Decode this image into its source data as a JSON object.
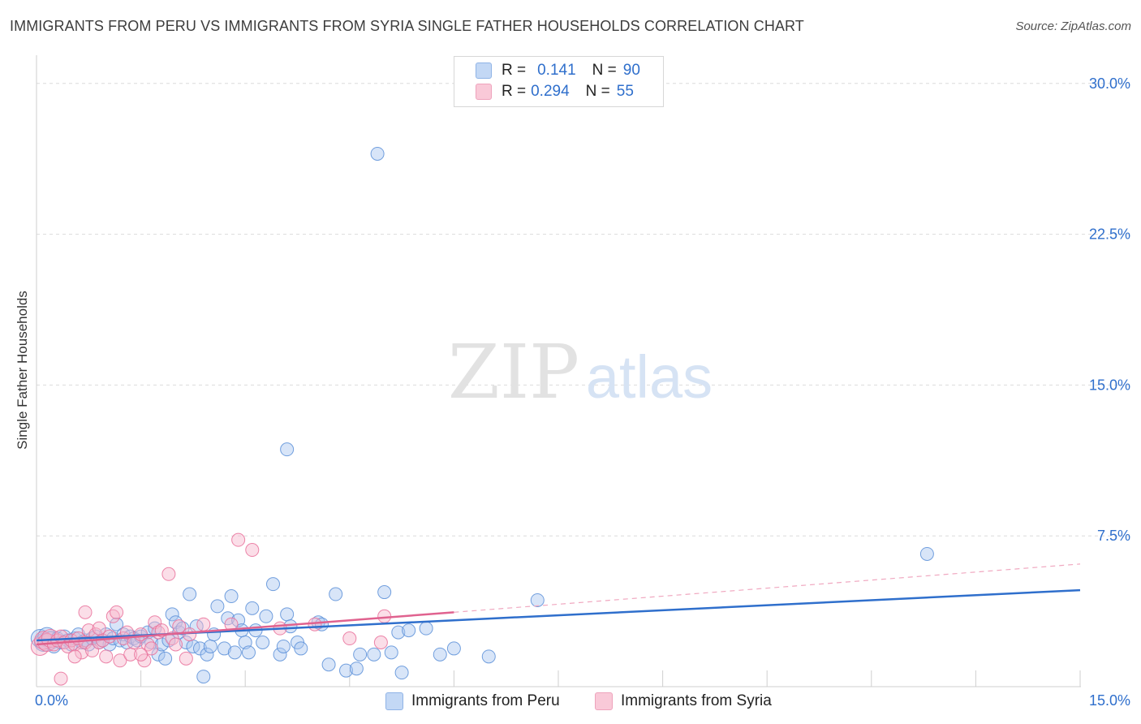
{
  "title": "IMMIGRANTS FROM PERU VS IMMIGRANTS FROM SYRIA SINGLE FATHER HOUSEHOLDS CORRELATION CHART",
  "source": "Source: ZipAtlas.com",
  "watermark": {
    "zip": "ZIP",
    "atlas": "atlas"
  },
  "legend": {
    "peru": {
      "r_label": "R =",
      "r_value": "0.141",
      "n_label": "N =",
      "n_value": "90",
      "name": "Immigrants from Peru"
    },
    "syria": {
      "r_label": "R =",
      "r_value": "0.294",
      "n_label": "N =",
      "n_value": "55",
      "name": "Immigrants from Syria"
    }
  },
  "colors": {
    "peru": "#5b8fd8",
    "peru_fill": "#a9c6ef",
    "syria": "#e9709a",
    "syria_fill": "#f6b6cb",
    "axis_label": "#2f6fcc",
    "grid": "#dcdcdc"
  },
  "chart_data": {
    "type": "scatter",
    "title": "IMMIGRANTS FROM PERU VS IMMIGRANTS FROM SYRIA SINGLE FATHER HOUSEHOLDS CORRELATION CHART",
    "xlabel": "",
    "ylabel": "Single Father Households",
    "xlim": [
      0,
      15
    ],
    "ylim": [
      0,
      31
    ],
    "x_tick_labels": [
      "0.0%",
      "15.0%"
    ],
    "y_ticks": [
      7.5,
      15,
      22.5,
      30
    ],
    "y_tick_labels": [
      "7.5%",
      "15.0%",
      "22.5%",
      "30.0%"
    ],
    "grid": true,
    "series": [
      {
        "name": "Immigrants from Peru",
        "R": 0.141,
        "N": 90,
        "trend": {
          "x": [
            0,
            15
          ],
          "y": [
            2.3,
            4.8
          ]
        },
        "points": [
          [
            0.05,
            2.4
          ],
          [
            0.1,
            2.2
          ],
          [
            0.15,
            2.5
          ],
          [
            0.2,
            2.3
          ],
          [
            0.25,
            2.0
          ],
          [
            0.3,
            2.4
          ],
          [
            0.35,
            2.2
          ],
          [
            0.4,
            2.5
          ],
          [
            0.45,
            2.3
          ],
          [
            0.5,
            2.1
          ],
          [
            0.55,
            2.4
          ],
          [
            0.6,
            2.6
          ],
          [
            0.65,
            2.2
          ],
          [
            0.7,
            2.3
          ],
          [
            0.75,
            2.1
          ],
          [
            0.8,
            2.4
          ],
          [
            0.85,
            2.5
          ],
          [
            0.9,
            2.2
          ],
          [
            0.95,
            2.3
          ],
          [
            1.0,
            2.6
          ],
          [
            1.05,
            2.1
          ],
          [
            1.1,
            2.4
          ],
          [
            1.15,
            3.1
          ],
          [
            1.2,
            2.3
          ],
          [
            1.25,
            2.6
          ],
          [
            1.3,
            2.2
          ],
          [
            1.35,
            2.5
          ],
          [
            1.4,
            2.4
          ],
          [
            1.45,
            2.3
          ],
          [
            1.5,
            2.5
          ],
          [
            1.6,
            2.7
          ],
          [
            1.65,
            2.2
          ],
          [
            1.7,
            2.9
          ],
          [
            1.75,
            1.6
          ],
          [
            1.8,
            2.1
          ],
          [
            1.85,
            1.4
          ],
          [
            1.9,
            2.3
          ],
          [
            1.95,
            3.6
          ],
          [
            2.0,
            3.2
          ],
          [
            2.05,
            2.7
          ],
          [
            2.1,
            2.9
          ],
          [
            2.15,
            2.2
          ],
          [
            2.2,
            4.6
          ],
          [
            2.25,
            2.0
          ],
          [
            2.3,
            3.0
          ],
          [
            2.35,
            1.9
          ],
          [
            2.4,
            0.5
          ],
          [
            2.45,
            1.6
          ],
          [
            2.5,
            2.0
          ],
          [
            2.55,
            2.6
          ],
          [
            2.6,
            4.0
          ],
          [
            2.7,
            1.9
          ],
          [
            2.75,
            3.4
          ],
          [
            2.8,
            4.5
          ],
          [
            2.85,
            1.7
          ],
          [
            2.9,
            3.3
          ],
          [
            2.95,
            2.8
          ],
          [
            3.0,
            2.2
          ],
          [
            3.05,
            1.7
          ],
          [
            3.1,
            3.9
          ],
          [
            3.15,
            2.8
          ],
          [
            3.25,
            2.2
          ],
          [
            3.3,
            3.5
          ],
          [
            3.4,
            5.1
          ],
          [
            3.5,
            1.6
          ],
          [
            3.55,
            2.0
          ],
          [
            3.6,
            3.6
          ],
          [
            3.65,
            3.0
          ],
          [
            3.75,
            2.2
          ],
          [
            3.8,
            1.9
          ],
          [
            4.05,
            3.2
          ],
          [
            4.1,
            3.1
          ],
          [
            4.2,
            1.1
          ],
          [
            4.3,
            4.6
          ],
          [
            4.45,
            0.8
          ],
          [
            4.6,
            0.9
          ],
          [
            4.65,
            1.6
          ],
          [
            4.85,
            1.6
          ],
          [
            5.0,
            4.7
          ],
          [
            5.1,
            1.7
          ],
          [
            5.2,
            2.7
          ],
          [
            5.25,
            0.7
          ],
          [
            5.35,
            2.8
          ],
          [
            5.6,
            2.9
          ],
          [
            5.8,
            1.6
          ],
          [
            6.0,
            1.9
          ],
          [
            6.5,
            1.5
          ],
          [
            7.2,
            4.3
          ],
          [
            12.8,
            6.6
          ],
          [
            4.9,
            26.5
          ],
          [
            3.6,
            11.8
          ]
        ]
      },
      {
        "name": "Immigrants from Syria",
        "R": 0.294,
        "N": 55,
        "trend_solid": {
          "x": [
            0,
            6.0
          ],
          "y": [
            2.1,
            3.7
          ]
        },
        "trend_dashed": {
          "x": [
            6.0,
            15
          ],
          "y": [
            3.7,
            6.1
          ]
        },
        "points": [
          [
            0.05,
            2.0
          ],
          [
            0.1,
            2.3
          ],
          [
            0.15,
            2.2
          ],
          [
            0.2,
            2.4
          ],
          [
            0.25,
            2.1
          ],
          [
            0.3,
            2.3
          ],
          [
            0.35,
            2.5
          ],
          [
            0.4,
            2.2
          ],
          [
            0.45,
            2.0
          ],
          [
            0.5,
            2.3
          ],
          [
            0.55,
            2.1
          ],
          [
            0.6,
            2.4
          ],
          [
            0.65,
            1.7
          ],
          [
            0.7,
            2.2
          ],
          [
            0.75,
            2.8
          ],
          [
            0.8,
            1.8
          ],
          [
            0.85,
            2.6
          ],
          [
            0.9,
            2.2
          ],
          [
            0.95,
            2.3
          ],
          [
            1.0,
            1.5
          ],
          [
            1.05,
            2.5
          ],
          [
            1.1,
            3.5
          ],
          [
            1.15,
            3.7
          ],
          [
            1.2,
            1.3
          ],
          [
            1.25,
            2.4
          ],
          [
            1.3,
            2.7
          ],
          [
            1.35,
            1.6
          ],
          [
            1.4,
            2.2
          ],
          [
            1.5,
            2.6
          ],
          [
            1.55,
            1.3
          ],
          [
            1.6,
            2.1
          ],
          [
            1.65,
            1.9
          ],
          [
            1.7,
            3.2
          ],
          [
            1.75,
            2.7
          ],
          [
            1.8,
            2.8
          ],
          [
            1.9,
            5.6
          ],
          [
            1.95,
            2.4
          ],
          [
            2.0,
            2.1
          ],
          [
            2.05,
            3.0
          ],
          [
            2.15,
            1.4
          ],
          [
            2.2,
            2.6
          ],
          [
            2.4,
            3.1
          ],
          [
            2.8,
            3.1
          ],
          [
            2.9,
            7.3
          ],
          [
            3.1,
            6.8
          ],
          [
            3.5,
            2.9
          ],
          [
            4.0,
            3.1
          ],
          [
            4.5,
            2.4
          ],
          [
            4.95,
            2.2
          ],
          [
            5.0,
            3.5
          ],
          [
            0.35,
            0.4
          ],
          [
            0.55,
            1.5
          ],
          [
            1.5,
            1.6
          ],
          [
            0.9,
            2.9
          ],
          [
            0.7,
            3.7
          ]
        ]
      }
    ]
  }
}
